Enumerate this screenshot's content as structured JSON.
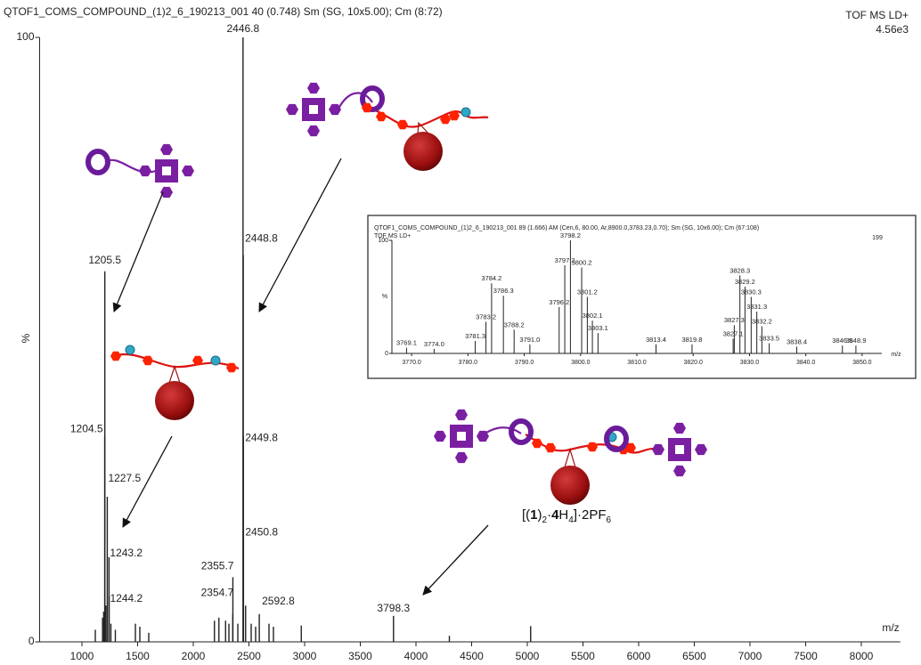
{
  "chart_data": [
    {
      "type": "spectrum",
      "title": "QTOF1_COMS_COMPOUND_(1)2_6_190213_001  40 (0.748) Sm (SG, 10x5.00); Cm (8:72)",
      "mode": "TOF MS LD+",
      "intensity": "4.56e3",
      "xlabel": "m/z",
      "ylabel": "%",
      "color": "#222222",
      "xlim": [
        620,
        8350
      ],
      "ylim": [
        0,
        100
      ],
      "xticks": [
        1000,
        1500,
        2000,
        2500,
        3000,
        3500,
        4000,
        4500,
        5000,
        5500,
        6000,
        6500,
        7000,
        7500,
        8000
      ],
      "yticks": [
        0,
        100
      ],
      "grid": false,
      "x": [
        1120,
        1185,
        1195,
        1204.5,
        1205.5,
        1215,
        1227.5,
        1243.2,
        1244.2,
        1260,
        1300,
        1480,
        1520,
        1600,
        2190,
        2230,
        2290,
        2320,
        2354.7,
        2355.7,
        2400,
        2446.8,
        2448.8,
        2449.8,
        2450.8,
        2470,
        2520,
        2560,
        2592.8,
        2680,
        2720,
        2970,
        3798.3,
        4300,
        5030
      ],
      "values": [
        2,
        4,
        5,
        34,
        61.3,
        6,
        24,
        14,
        7.5,
        3,
        2,
        3,
        2.5,
        1.5,
        3.5,
        4,
        3.5,
        3,
        4.5,
        10.7,
        3,
        100,
        64,
        34,
        18.5,
        6,
        3,
        2.5,
        4.6,
        3,
        2.5,
        2.7,
        4.3,
        1,
        2.6
      ],
      "labels": [
        null,
        null,
        null,
        "1204.5",
        "1205.5",
        null,
        "1227.5",
        "1243.2",
        "1244.2",
        null,
        null,
        null,
        null,
        null,
        null,
        null,
        null,
        null,
        "2354.7",
        "2355.7",
        null,
        "2446.8",
        "2448.8",
        "2449.8",
        "2450.8",
        null,
        null,
        null,
        "2592.8",
        null,
        null,
        null,
        "3798.3",
        null,
        null
      ]
    },
    {
      "type": "spectrum",
      "title": "QTOF1_COMS_COMPOUND_(1)2_6_190213_001 89 (1.666) AM (Cen,6, 80.00, Ar,8900.0,3783.23,0.70); Sm (SG, 10x6.00); Cm (67:108)",
      "mode": "TOF MS LD+",
      "intensity": "199",
      "xlabel": "m/z",
      "ylabel": "%",
      "color": "#222222",
      "xlim": [
        3766.5,
        3853.5
      ],
      "ylim": [
        0,
        100
      ],
      "xticks": [
        {
          "value": 3770,
          "label": "3770.0"
        },
        {
          "value": 3780,
          "label": "3780.0"
        },
        {
          "value": 3790,
          "label": "3790.0"
        },
        {
          "value": 3800,
          "label": "3800.0"
        },
        {
          "value": 3810,
          "label": "3810.0"
        },
        {
          "value": 3820,
          "label": "3820.0"
        },
        {
          "value": 3830,
          "label": "3830.0"
        },
        {
          "value": 3840,
          "label": "3840.0"
        },
        {
          "value": 3850,
          "label": "3850.0"
        }
      ],
      "yticks": [
        0,
        100
      ],
      "grid": false,
      "x": [
        3769.1,
        3774.0,
        3781.3,
        3783.2,
        3784.2,
        3786.3,
        3788.2,
        3791.0,
        3796.2,
        3797.2,
        3798.2,
        3800.2,
        3801.2,
        3802.1,
        3803.1,
        3813.4,
        3819.8,
        3827.1,
        3827.3,
        3828.3,
        3829.2,
        3830.3,
        3831.3,
        3832.2,
        3833.5,
        3838.4,
        3846.5,
        3848.9
      ],
      "values": [
        5,
        4,
        11,
        28,
        62,
        51,
        21,
        8,
        41,
        78,
        100,
        76,
        50,
        29,
        18,
        8,
        8,
        13,
        25,
        69,
        59,
        50,
        37,
        24,
        9,
        6,
        7,
        7
      ],
      "labels": [
        "3769.1",
        "3774.0",
        "3781.3",
        "3783.2",
        "3784.2",
        "3786.3",
        "3788.2",
        "3791.0",
        "3796.2",
        "3797.2",
        "3798.2",
        "3800.2",
        "3801.2",
        "3802.1",
        "3803.1",
        "3813.4",
        "3819.8",
        "3827.1",
        "3827.3",
        "3828.3",
        "3829.2",
        "3830.3",
        "3831.3",
        "3832.2",
        "3833.5",
        "3838.4",
        "3846.5",
        "3848.9"
      ]
    }
  ],
  "annotation": [
    "[(",
    "1",
    ")",
    "2",
    "·",
    "4",
    "H",
    "4",
    "]·2PF",
    "6"
  ]
}
